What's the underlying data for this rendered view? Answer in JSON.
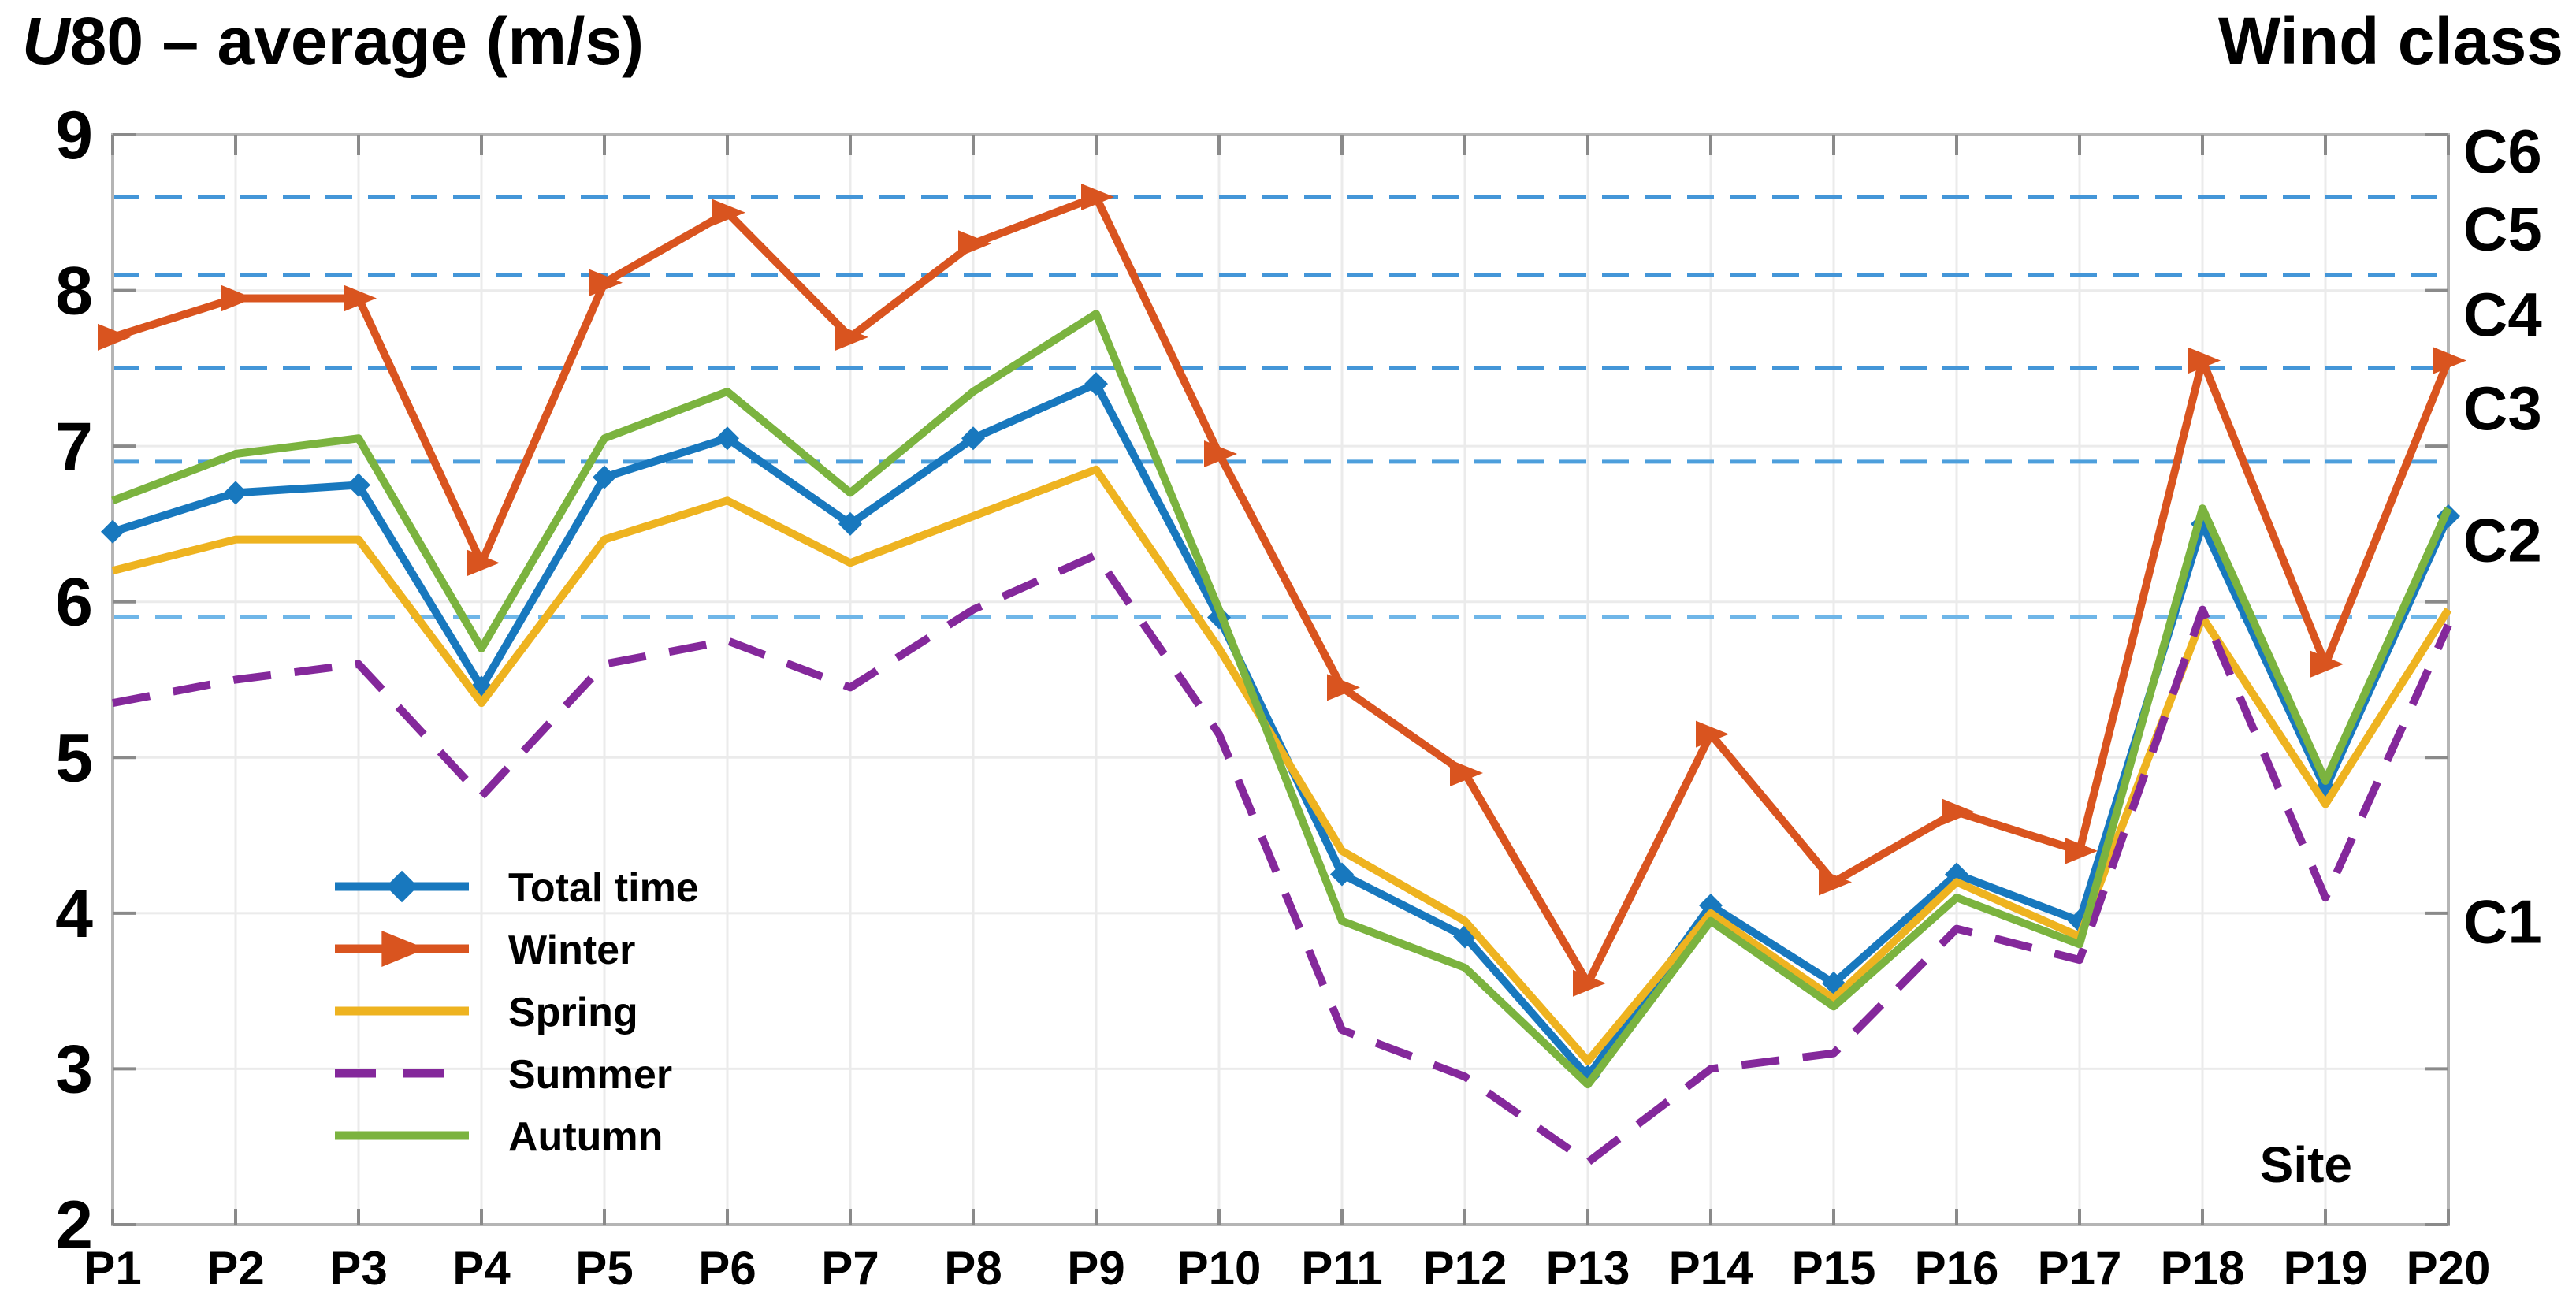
{
  "title": {
    "left_italic": "U",
    "left_rest": "80 – average (m/s)",
    "right": "Wind class"
  },
  "site_label": "Site",
  "chart_data": {
    "type": "line",
    "title": "U80 - average (m/s)",
    "right_axis_title": "Wind class",
    "xlabel": "Site",
    "ylabel": "U80 - average (m/s)",
    "ylim": [
      2,
      9
    ],
    "yticks": [
      9,
      8,
      7,
      6,
      5,
      4,
      3,
      2
    ],
    "grid": true,
    "legend_position": "inside-bottom-left",
    "categories": [
      "P1",
      "P2",
      "P3",
      "P4",
      "P5",
      "P6",
      "P7",
      "P8",
      "P9",
      "P10",
      "P11",
      "P12",
      "P13",
      "P14",
      "P15",
      "P16",
      "P17",
      "P18",
      "P19",
      "P20"
    ],
    "series": [
      {
        "name": "Total time",
        "color": "#1878BE",
        "line_style": "solid",
        "marker": "diamond",
        "values": [
          6.45,
          6.7,
          6.75,
          5.45,
          6.8,
          7.05,
          6.5,
          7.05,
          7.4,
          5.9,
          4.25,
          3.85,
          2.95,
          4.05,
          3.55,
          4.25,
          3.95,
          6.5,
          4.8,
          6.55
        ]
      },
      {
        "name": "Winter",
        "color": "#D9541F",
        "line_style": "solid",
        "marker": "triangle-right",
        "values": [
          7.7,
          7.95,
          7.95,
          6.25,
          8.05,
          8.5,
          7.7,
          8.3,
          8.6,
          6.95,
          5.45,
          4.9,
          3.55,
          5.15,
          4.2,
          4.65,
          4.4,
          7.55,
          5.6,
          7.55
        ]
      },
      {
        "name": "Spring",
        "color": "#EEB320",
        "line_style": "solid",
        "marker": "none",
        "values": [
          6.2,
          6.4,
          6.4,
          5.35,
          6.4,
          6.65,
          6.25,
          6.55,
          6.85,
          5.7,
          4.4,
          3.95,
          3.05,
          4.0,
          3.45,
          4.2,
          3.85,
          5.9,
          4.7,
          5.95
        ]
      },
      {
        "name": "Summer",
        "color": "#84289B",
        "line_style": "dashed",
        "marker": "none",
        "values": [
          5.35,
          5.5,
          5.6,
          4.75,
          5.6,
          5.75,
          5.45,
          5.95,
          6.3,
          5.15,
          3.25,
          2.95,
          2.4,
          3.0,
          3.1,
          3.9,
          3.7,
          5.95,
          4.1,
          5.85
        ]
      },
      {
        "name": "Autumn",
        "color": "#7BB33F",
        "line_style": "solid",
        "marker": "none",
        "values": [
          6.65,
          6.95,
          7.05,
          5.7,
          7.05,
          7.35,
          6.7,
          7.35,
          7.85,
          5.95,
          3.95,
          3.65,
          2.9,
          3.95,
          3.4,
          4.1,
          3.8,
          6.6,
          4.85,
          6.6
        ]
      }
    ],
    "wind_classes": {
      "boundaries": [
        {
          "value": 8.6,
          "color": "#4496D8"
        },
        {
          "value": 8.1,
          "color": "#4496D8"
        },
        {
          "value": 7.5,
          "color": "#4496D8"
        },
        {
          "value": 6.9,
          "color": "#4D9FDC"
        },
        {
          "value": 5.9,
          "color": "#6FB6E8"
        }
      ],
      "labels": [
        {
          "label": "C6",
          "value": 8.9
        },
        {
          "label": "C5",
          "value": 8.4
        },
        {
          "label": "C4",
          "value": 7.85
        },
        {
          "label": "C3",
          "value": 7.25
        },
        {
          "label": "C2",
          "value": 6.4
        },
        {
          "label": "C1",
          "value": 3.95
        }
      ]
    }
  }
}
